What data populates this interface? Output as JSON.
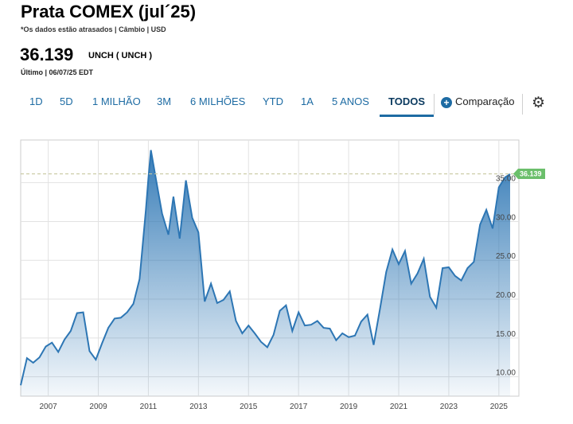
{
  "header": {
    "title": "Prata COMEX (jul´25)",
    "subtitle": "*Os dados estão atrasados | Câmbio | USD",
    "price": "36.139",
    "unit": "UNCH ( UNCH )",
    "timestamp": "Último | 06/07/25 EDT"
  },
  "tabs": [
    {
      "label": "1D",
      "active": false
    },
    {
      "label": "5D",
      "active": false
    },
    {
      "label": "1 MILHÃO",
      "active": false
    },
    {
      "label": "3M",
      "active": false
    },
    {
      "label": "6 MILHÕES",
      "active": false
    },
    {
      "label": "YTD",
      "active": false
    },
    {
      "label": "1A",
      "active": false
    },
    {
      "label": "5 ANOS",
      "active": false
    },
    {
      "label": "TODOS",
      "active": true
    }
  ],
  "compare_label": "Comparação",
  "icons": {
    "compare": "plus-circle-icon",
    "settings": "gear-icon"
  },
  "colors": {
    "line": "#2d76b4",
    "accent": "#1d6ba3",
    "last_badge": "#6bbf6b"
  },
  "chart_data": {
    "type": "area",
    "x": [
      2005.9,
      2006.15,
      2006.4,
      2006.65,
      2006.9,
      2007.15,
      2007.4,
      2007.65,
      2007.9,
      2008.15,
      2008.4,
      2008.65,
      2008.9,
      2009.15,
      2009.4,
      2009.65,
      2009.9,
      2010.15,
      2010.4,
      2010.65,
      2010.9,
      2011.0,
      2011.1,
      2011.3,
      2011.55,
      2011.8,
      2012.0,
      2012.25,
      2012.5,
      2012.75,
      2013.0,
      2013.25,
      2013.5,
      2013.75,
      2014.0,
      2014.25,
      2014.5,
      2014.75,
      2015.0,
      2015.25,
      2015.5,
      2015.75,
      2016.0,
      2016.25,
      2016.5,
      2016.75,
      2017.0,
      2017.25,
      2017.5,
      2017.75,
      2018.0,
      2018.25,
      2018.5,
      2018.75,
      2019.0,
      2019.25,
      2019.5,
      2019.75,
      2020.0,
      2020.25,
      2020.5,
      2020.75,
      2021.0,
      2021.25,
      2021.5,
      2021.75,
      2022.0,
      2022.25,
      2022.5,
      2022.75,
      2023.0,
      2023.25,
      2023.5,
      2023.75,
      2024.0,
      2024.25,
      2024.5,
      2024.75,
      2025.0,
      2025.25,
      2025.45
    ],
    "values": [
      8.9,
      12.4,
      11.8,
      12.5,
      13.9,
      14.4,
      13.2,
      14.8,
      15.9,
      18.2,
      18.3,
      13.3,
      12.2,
      14.3,
      16.3,
      17.5,
      17.6,
      18.3,
      19.4,
      22.6,
      31.5,
      35.5,
      39.2,
      35.5,
      31.0,
      28.3,
      33.2,
      27.8,
      35.3,
      30.5,
      28.6,
      19.7,
      22.0,
      19.5,
      19.9,
      21.0,
      17.2,
      15.6,
      16.6,
      15.6,
      14.5,
      13.8,
      15.4,
      18.5,
      19.2,
      15.9,
      18.3,
      16.6,
      16.7,
      17.2,
      16.3,
      16.2,
      14.7,
      15.6,
      15.1,
      15.3,
      17.1,
      18.0,
      14.1,
      18.7,
      23.5,
      26.4,
      24.5,
      26.2,
      22.0,
      23.3,
      25.2,
      20.3,
      18.9,
      24.0,
      24.1,
      23.0,
      22.4,
      24.0,
      24.8,
      29.6,
      31.5,
      29.1,
      34.4,
      35.7,
      36.1
    ],
    "last_value_label": "36.139",
    "last_value": 36.139,
    "xlim": [
      2005.9,
      2025.8
    ],
    "ylim": [
      7.5,
      40.5
    ],
    "xticks": [
      2007,
      2009,
      2011,
      2013,
      2015,
      2017,
      2019,
      2021,
      2023,
      2025
    ],
    "xtick_labels": [
      "2007",
      "2009",
      "2011",
      "2013",
      "2015",
      "2017",
      "2019",
      "2021",
      "2023",
      "2025"
    ],
    "yticks": [
      10,
      15,
      20,
      25,
      30,
      35
    ],
    "ytick_labels": [
      "10.00",
      "15.00",
      "20.00",
      "25.00",
      "30.00",
      "35.00"
    ],
    "grid": true,
    "yaxis_side": "right"
  }
}
